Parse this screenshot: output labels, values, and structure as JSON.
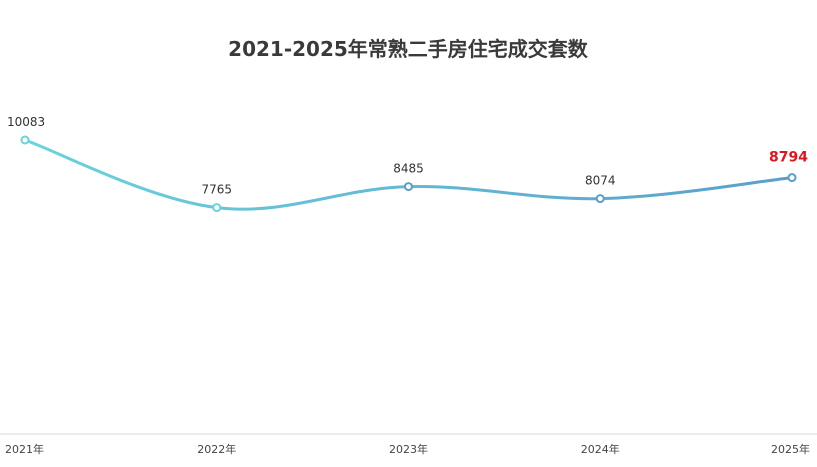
{
  "chart_data": {
    "type": "line",
    "title": "2021-2025年常熟二手房住宅成交套数",
    "xlabel": "",
    "ylabel": "",
    "categories": [
      "2021年",
      "2022年",
      "2023年",
      "2024年",
      "2025年"
    ],
    "series": [
      {
        "values": [
          10083,
          7765,
          8485,
          8074,
          8794
        ]
      }
    ],
    "ylim": [
      0,
      11500
    ],
    "grid": false,
    "legend": "none",
    "smooth": true,
    "highlight_index": 4,
    "colors": {
      "line_start": "#6ad3dc",
      "line_end": "#5b9ecb",
      "highlight_label": "#e0141e",
      "axis": "#d9d9d9"
    }
  }
}
